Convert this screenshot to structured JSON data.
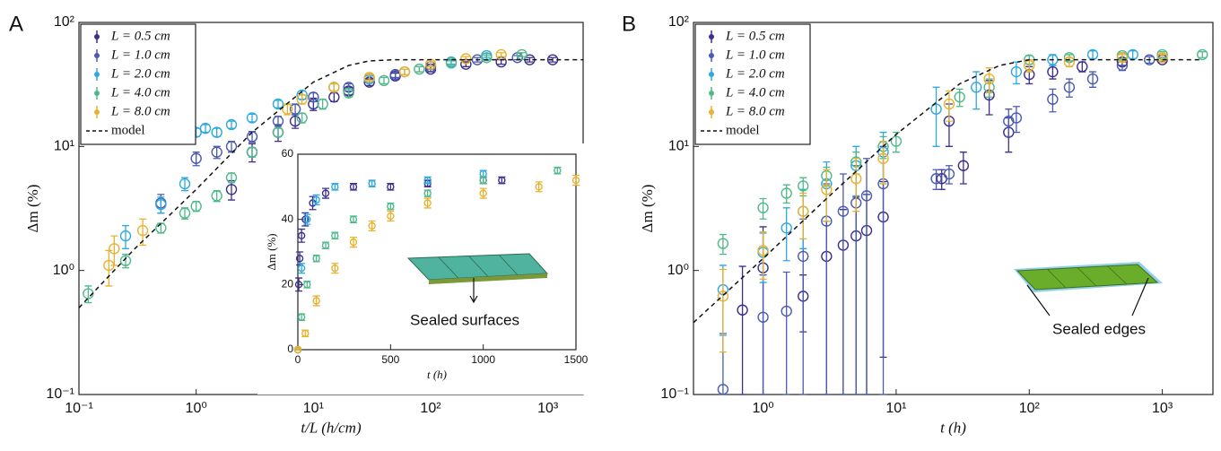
{
  "chart_data": [
    {
      "type": "scatter",
      "panel_label": "A",
      "xlabel": "t/L (h/cm)",
      "ylabel": "Δm (%)",
      "xlog": true,
      "ylog": true,
      "xlim": [
        0.1,
        2000
      ],
      "ylim": [
        0.1,
        100
      ],
      "xticks": [
        {
          "value": 0.1,
          "label": "10⁻¹"
        },
        {
          "value": 1,
          "label": "10⁰"
        },
        {
          "value": 10,
          "label": "10¹"
        },
        {
          "value": 100,
          "label": "10²"
        },
        {
          "value": 1000,
          "label": "10³"
        }
      ],
      "yticks": [
        {
          "value": 0.1,
          "label": "10⁻¹"
        },
        {
          "value": 1,
          "label": "10⁰"
        },
        {
          "value": 10,
          "label": "10¹"
        },
        {
          "value": 100,
          "label": "10²"
        }
      ],
      "legend": "upper left",
      "series": [
        {
          "name": "L = 0.5 cm",
          "color": "#3b2f8f",
          "mode": "markers",
          "x": [
            2,
            3,
            5,
            7,
            10,
            15,
            20,
            30,
            50,
            100,
            200,
            400,
            700,
            1100
          ],
          "values": [
            4.5,
            9,
            13,
            16,
            22,
            25,
            28,
            33,
            37,
            42,
            46,
            48,
            50,
            50
          ],
          "errors": [
            0.8,
            1.5,
            2,
            2,
            2.5,
            2,
            2,
            2,
            2,
            2,
            2,
            2,
            2,
            2
          ]
        },
        {
          "name": "L = 1.0 cm",
          "color": "#4a5bb0",
          "mode": "markers",
          "x": [
            0.5,
            1,
            1.5,
            2,
            3,
            5,
            7,
            10,
            20,
            50,
            100,
            250,
            550
          ],
          "values": [
            3.5,
            8,
            9,
            10,
            12,
            16,
            20,
            25,
            30,
            38,
            44,
            50,
            52
          ],
          "errors": [
            0.6,
            1,
            1,
            1,
            1.2,
            1.5,
            2,
            2,
            2,
            2,
            2,
            2,
            2
          ]
        },
        {
          "name": "L = 2.0 cm",
          "color": "#2fa8e0",
          "mode": "markers",
          "x": [
            0.25,
            0.5,
            0.8,
            1,
            1.2,
            1.5,
            2,
            3,
            5,
            8,
            15,
            30,
            60,
            150,
            300
          ],
          "values": [
            1.9,
            3.4,
            5,
            13,
            14,
            13,
            15,
            17,
            22,
            26,
            30,
            35,
            40,
            48,
            54
          ],
          "errors": [
            0.4,
            0.5,
            0.6,
            1,
            1,
            1,
            1,
            1.2,
            1.5,
            2,
            2,
            2,
            2,
            2,
            2
          ]
        },
        {
          "name": "L = 4.0 cm",
          "color": "#4fb98a",
          "mode": "markers",
          "x": [
            0.12,
            0.25,
            0.5,
            0.8,
            1,
            1.5,
            2,
            3,
            5,
            8,
            12,
            20,
            40,
            80,
            150,
            300,
            600
          ],
          "values": [
            0.65,
            1.2,
            2.2,
            2.9,
            3.3,
            4,
            5.6,
            9,
            13,
            17,
            22,
            27,
            34,
            42,
            47,
            52,
            55
          ],
          "errors": [
            0.1,
            0.15,
            0.2,
            0.3,
            0.3,
            0.4,
            0.5,
            0.8,
            1,
            1.5,
            2,
            2,
            2,
            2,
            2,
            2,
            2
          ]
        },
        {
          "name": "L = 8.0 cm",
          "color": "#e8b230",
          "mode": "markers",
          "x": [
            0.18,
            0.2,
            0.35,
            6,
            8,
            15,
            30,
            60,
            100,
            200,
            400
          ],
          "values": [
            1.1,
            1.5,
            2.1,
            20,
            24,
            30,
            36,
            40,
            46,
            51,
            55
          ],
          "errors": [
            0.35,
            0.4,
            0.5,
            2,
            2,
            2,
            2,
            2,
            2,
            2,
            2
          ]
        },
        {
          "name": "model",
          "color": "#111111",
          "mode": "line",
          "x": [
            0.1,
            0.3,
            1,
            3,
            10,
            20,
            30,
            50,
            100,
            1000,
            2000
          ],
          "values": [
            0.5,
            1.5,
            4.5,
            13,
            33,
            45,
            49,
            50,
            50,
            50,
            50
          ]
        }
      ]
    },
    {
      "type": "scatter",
      "panel_label": "B",
      "xlabel": "t (h)",
      "ylabel": "Δm (%)",
      "xlog": true,
      "ylog": true,
      "xlim": [
        0.3,
        2400
      ],
      "ylim": [
        0.1,
        100
      ],
      "xticks": [
        {
          "value": 1,
          "label": "10⁰"
        },
        {
          "value": 10,
          "label": "10¹"
        },
        {
          "value": 100,
          "label": "10²"
        },
        {
          "value": 1000,
          "label": "10³"
        }
      ],
      "yticks": [
        {
          "value": 0.1,
          "label": "10⁻¹"
        },
        {
          "value": 1,
          "label": "10⁰"
        },
        {
          "value": 10,
          "label": "10¹"
        },
        {
          "value": 100,
          "label": "10²"
        }
      ],
      "legend": "upper left",
      "annotation": "Sealed edges",
      "series": [
        {
          "name": "L = 0.5 cm",
          "color": "#3b2f8f",
          "mode": "markers",
          "x": [
            0.7,
            1,
            2,
            3,
            4,
            5,
            6,
            8,
            22,
            25,
            32,
            50,
            70,
            100,
            150,
            250,
            500,
            1000
          ],
          "values": [
            0.48,
            1.05,
            0.62,
            1.3,
            1.6,
            1.9,
            2.1,
            2.7,
            5.5,
            16,
            7,
            26,
            13,
            38,
            40,
            44,
            48,
            50
          ],
          "errors": [
            0.6,
            1.2,
            0.3,
            1.2,
            1.5,
            2,
            2,
            2.5,
            1,
            6,
            2,
            8,
            4,
            6,
            5,
            4,
            3,
            2
          ]
        },
        {
          "name": "L = 1.0 cm",
          "color": "#4a5bb0",
          "mode": "markers",
          "x": [
            0.5,
            1,
            1.5,
            2,
            3,
            4,
            5,
            6,
            8,
            20,
            25,
            70,
            80,
            150,
            200,
            300,
            500,
            800
          ],
          "values": [
            0.11,
            0.42,
            0.47,
            1.3,
            2.5,
            3,
            3.5,
            4,
            5,
            5.5,
            6,
            16,
            17,
            24,
            30,
            35,
            45,
            50
          ],
          "errors": [
            0.2,
            0.5,
            0.5,
            1.3,
            2.5,
            3,
            3.5,
            4,
            5,
            1,
            1,
            4,
            4,
            5,
            5,
            5,
            4,
            3
          ]
        },
        {
          "name": "L = 2.0 cm",
          "color": "#2fa8e0",
          "mode": "markers",
          "x": [
            0.5,
            1,
            1.5,
            2,
            3,
            5,
            8,
            20,
            40,
            80,
            150,
            300,
            600
          ],
          "values": [
            0.7,
            1.4,
            2.2,
            3,
            5,
            7,
            9,
            20,
            30,
            40,
            50,
            55,
            55
          ],
          "errors": [
            0.4,
            0.6,
            1,
            1.5,
            2.5,
            3,
            4,
            10,
            10,
            8,
            5,
            4,
            4
          ]
        },
        {
          "name": "L = 4.0 cm",
          "color": "#4fb98a",
          "mode": "markers",
          "x": [
            0.5,
            1,
            1.5,
            2,
            3,
            5,
            8,
            10,
            30,
            50,
            100,
            200,
            500,
            1000,
            2000
          ],
          "values": [
            1.65,
            3.2,
            4.2,
            4.8,
            5.8,
            7.5,
            10,
            11,
            25,
            30,
            50,
            52,
            54,
            55,
            55
          ],
          "errors": [
            0.3,
            0.6,
            0.7,
            0.8,
            1,
            1.5,
            2,
            2,
            4,
            5,
            4,
            3,
            3,
            3,
            3
          ]
        },
        {
          "name": "L = 8.0 cm",
          "color": "#e8b230",
          "mode": "markers",
          "x": [
            0.5,
            1,
            2,
            3,
            5,
            8,
            25,
            50,
            100,
            200,
            500,
            1000
          ],
          "values": [
            0.62,
            1.45,
            3,
            4.5,
            5.5,
            8,
            22,
            35,
            45,
            48,
            52,
            52
          ],
          "errors": [
            0.4,
            0.6,
            1.2,
            2,
            2.5,
            3,
            6,
            8,
            5,
            4,
            3,
            3
          ]
        },
        {
          "name": "model",
          "color": "#111111",
          "mode": "line",
          "x": [
            0.3,
            1,
            3,
            10,
            30,
            60,
            100,
            2000
          ],
          "values": [
            0.38,
            1.25,
            3.8,
            12.5,
            32,
            45,
            50,
            50
          ]
        }
      ]
    },
    {
      "type": "scatter",
      "xlabel": "t (h)",
      "ylabel": "Δm (%)",
      "xlog": false,
      "ylog": false,
      "xlim": [
        0,
        1500
      ],
      "ylim": [
        0,
        60
      ],
      "xticks": [
        0,
        500,
        1000,
        1500
      ],
      "yticks": [
        0,
        20,
        40,
        60
      ],
      "annotation": "Sealed surfaces",
      "series": [
        {
          "color": "#3b2f8f",
          "mode": "markers",
          "x": [
            0,
            5,
            10,
            20,
            40,
            80,
            150,
            300,
            500,
            700,
            1000,
            1100
          ],
          "values": [
            0,
            20,
            28,
            35,
            40,
            45,
            48,
            50,
            50,
            51,
            52,
            52
          ],
          "errors": [
            0.5,
            2,
            2,
            2,
            2,
            2,
            1.5,
            1,
            1,
            1,
            1,
            1
          ]
        },
        {
          "color": "#2fa8e0",
          "mode": "markers",
          "x": [
            0,
            20,
            50,
            100,
            200,
            400,
            700,
            1000
          ],
          "values": [
            0,
            25,
            40,
            46,
            50,
            51,
            52,
            54
          ],
          "errors": [
            0.5,
            1.5,
            1.5,
            1.5,
            1,
            1,
            1,
            1
          ]
        },
        {
          "color": "#4fb98a",
          "mode": "markers",
          "x": [
            0,
            20,
            50,
            100,
            150,
            200,
            300,
            500,
            700,
            1000,
            1400
          ],
          "values": [
            0,
            10,
            20,
            28,
            32,
            35,
            40,
            44,
            48,
            52,
            55
          ],
          "errors": [
            0.5,
            1,
            1,
            1,
            1,
            1,
            1,
            1,
            1,
            1,
            1
          ]
        },
        {
          "color": "#e8b230",
          "mode": "markers",
          "x": [
            0,
            40,
            100,
            200,
            300,
            400,
            500,
            700,
            1000,
            1300,
            1500
          ],
          "values": [
            0,
            5,
            15,
            25,
            33,
            38,
            41,
            45,
            48,
            50,
            52
          ],
          "errors": [
            0.5,
            1,
            1.5,
            1.5,
            1.5,
            1.5,
            1.5,
            1.5,
            1.5,
            1.5,
            1.5
          ]
        }
      ]
    }
  ]
}
